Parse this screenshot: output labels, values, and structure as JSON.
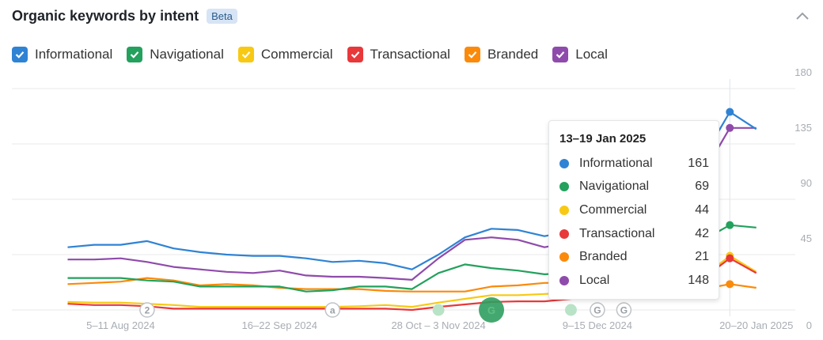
{
  "header": {
    "title": "Organic keywords by intent",
    "badge": "Beta",
    "collapse_icon": "chevron-up-icon"
  },
  "legend": [
    {
      "label": "Informational",
      "color": "#2f83d4"
    },
    {
      "label": "Navigational",
      "color": "#23a15d"
    },
    {
      "label": "Commercial",
      "color": "#f8c913"
    },
    {
      "label": "Transactional",
      "color": "#e8383a"
    },
    {
      "label": "Branded",
      "color": "#fb8a0a"
    },
    {
      "label": "Local",
      "color": "#8f4bab"
    }
  ],
  "tooltip": {
    "title": "13–19 Jan 2025",
    "rows": [
      {
        "label": "Informational",
        "value": "161"
      },
      {
        "label": "Navigational",
        "value": "69"
      },
      {
        "label": "Commercial",
        "value": "44"
      },
      {
        "label": "Transactional",
        "value": "42"
      },
      {
        "label": "Branded",
        "value": "21"
      },
      {
        "label": "Local",
        "value": "148"
      }
    ]
  },
  "chart_data": {
    "type": "line",
    "x_tick_labels": [
      "5–11 Aug 2024",
      "16–22 Sep 2024",
      "28 Oct – 3 Nov 2024",
      "9–15 Dec 2024",
      "20–20 Jan 2025"
    ],
    "x_tick_index": [
      2,
      8,
      14,
      20,
      26
    ],
    "highlight_index": 25,
    "y_ticks": [
      0,
      45,
      90,
      135,
      180
    ],
    "ylim": [
      0,
      180
    ],
    "grid": true,
    "y_axis": "right",
    "series": [
      {
        "name": "Informational",
        "color": "#2f83d4",
        "values": [
          51,
          53,
          53,
          56,
          50,
          47,
          45,
          44,
          44,
          42,
          39,
          40,
          38,
          33,
          45,
          59,
          66,
          65,
          60,
          64,
          75,
          90,
          100,
          112,
          124,
          161,
          147
        ]
      },
      {
        "name": "Navigational",
        "color": "#23a15d",
        "values": [
          26,
          26,
          26,
          24,
          23,
          19,
          19,
          19,
          19,
          15,
          16,
          19,
          19,
          17,
          30,
          37,
          34,
          32,
          29,
          30,
          35,
          40,
          45,
          50,
          57,
          69,
          67
        ]
      },
      {
        "name": "Commercial",
        "color": "#f8c913",
        "values": [
          6.5,
          6,
          6,
          5,
          4,
          2.5,
          2.5,
          2.5,
          2.5,
          2.5,
          2.5,
          3,
          4,
          2.5,
          6,
          9,
          12,
          12,
          13,
          14,
          16,
          18,
          21,
          24,
          27,
          44,
          31
        ]
      },
      {
        "name": "Transactional",
        "color": "#e8383a",
        "values": [
          5,
          4,
          4,
          3,
          1,
          1,
          1,
          1,
          1,
          1,
          1,
          1,
          1,
          0,
          2.5,
          4.5,
          6.5,
          7,
          7,
          9,
          12,
          15,
          18,
          22,
          26,
          42,
          30
        ]
      },
      {
        "name": "Branded",
        "color": "#fb8a0a",
        "values": [
          21,
          22,
          23,
          26,
          24,
          20,
          21,
          20,
          18,
          17,
          17,
          17,
          15.5,
          15,
          15,
          15,
          19,
          20,
          22,
          22,
          20,
          18,
          17,
          17,
          17,
          21,
          18
        ]
      },
      {
        "name": "Local",
        "color": "#8f4bab",
        "values": [
          41,
          41,
          42,
          39,
          35,
          33,
          31,
          30,
          32,
          28,
          27,
          27,
          26,
          24.5,
          42,
          57,
          59,
          57,
          51,
          55,
          65,
          78,
          88,
          100,
          111,
          148,
          148
        ]
      }
    ]
  },
  "events": [
    {
      "index": 3,
      "label": "2",
      "style": "outline"
    },
    {
      "index": 10,
      "label": "a",
      "style": "outline"
    },
    {
      "index": 14,
      "label": "",
      "style": "light-green"
    },
    {
      "index": 16,
      "label": "G",
      "style": "big-green"
    },
    {
      "index": 19,
      "label": "",
      "style": "light-green"
    },
    {
      "index": 20,
      "label": "G",
      "style": "outline"
    },
    {
      "index": 21,
      "label": "G",
      "style": "outline"
    }
  ]
}
